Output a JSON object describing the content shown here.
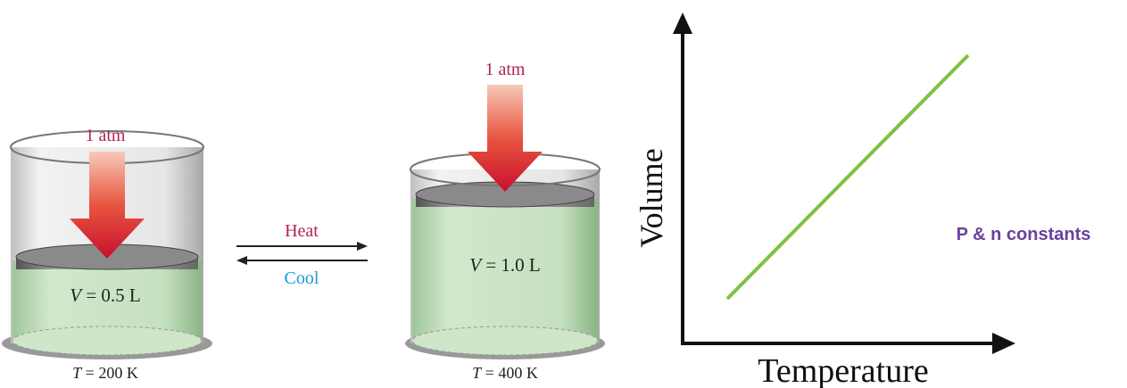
{
  "left_cylinder": {
    "pressure": "1 atm",
    "volume": {
      "symbol": "V",
      "rest": "= 0.5 L"
    },
    "temperature": {
      "symbol": "T",
      "rest": "= 200 K"
    }
  },
  "process": {
    "forward": "Heat",
    "backward": "Cool"
  },
  "right_cylinder": {
    "pressure": "1 atm",
    "volume": {
      "symbol": "V",
      "rest": "= 1.0 L"
    },
    "temperature": {
      "symbol": "T",
      "rest": "= 400 K"
    }
  },
  "graph": {
    "y_label": "Volume",
    "x_label": "Temperature",
    "note": "P & n constants"
  }
}
